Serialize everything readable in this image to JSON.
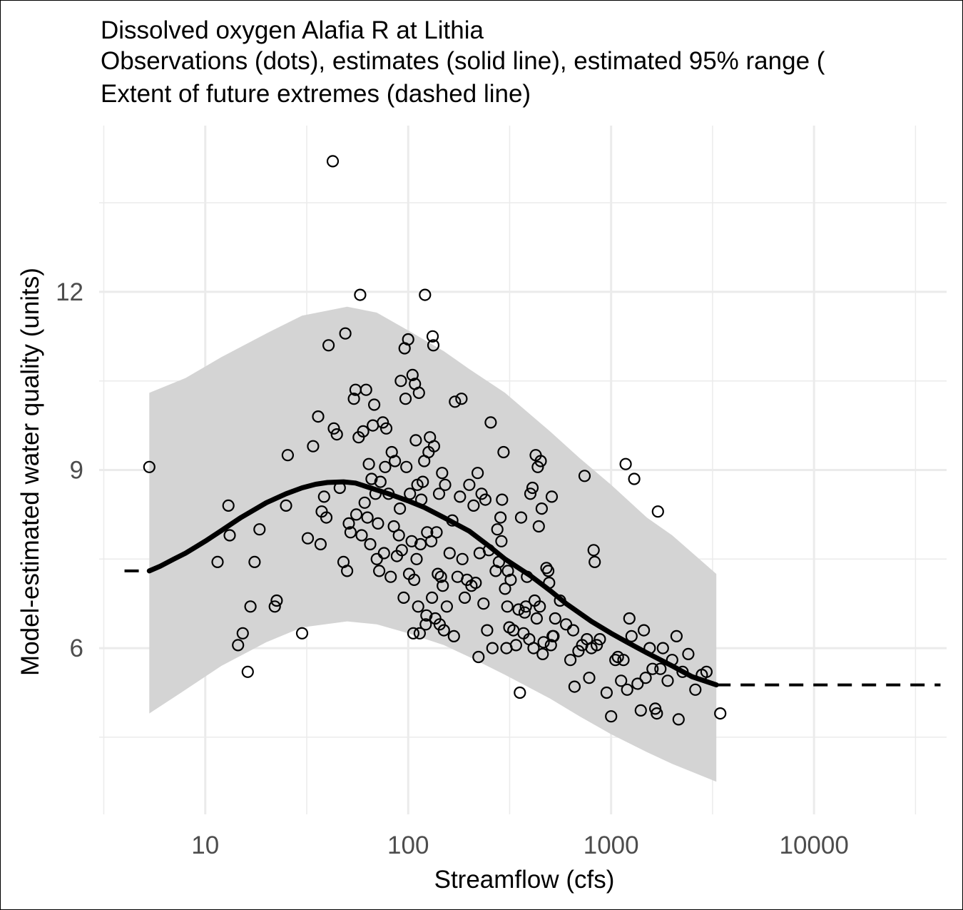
{
  "chart_data": {
    "type": "scatter",
    "title": "Dissolved oxygen Alafia R at Lithia",
    "subtitle_lines": [
      "Observations (dots), estimates (solid line), estimated 95% range (",
      "Extent of future extremes (dashed line)"
    ],
    "xlabel": "Streamflow (cfs)",
    "ylabel": "Model-estimated water quality (units)",
    "x_scale": "log10",
    "xlim": [
      3,
      45000
    ],
    "ylim": [
      3.2,
      14.8
    ],
    "x_ticks": [
      10,
      100,
      1000,
      10000
    ],
    "x_tick_labels": [
      "10",
      "100",
      "1000",
      "10000"
    ],
    "y_ticks": [
      6,
      9,
      12
    ],
    "y_tick_labels": [
      "6",
      "9",
      "12"
    ],
    "grid": true,
    "colors": {
      "band": "#d4d4d4",
      "line": "#000000",
      "grid": "#ebebeb",
      "text": "#4d4d4d"
    },
    "estimate_line": {
      "x": [
        5.3,
        6,
        7,
        8,
        10,
        12,
        15,
        20,
        25,
        30,
        35,
        40,
        48,
        55,
        65,
        80,
        100,
        120,
        150,
        200,
        250,
        300,
        400,
        500,
        600,
        800,
        1000,
        1200,
        1500,
        2000,
        2500,
        3300
      ],
      "y": [
        7.3,
        7.38,
        7.5,
        7.6,
        7.8,
        7.98,
        8.2,
        8.45,
        8.6,
        8.7,
        8.76,
        8.79,
        8.8,
        8.78,
        8.7,
        8.6,
        8.48,
        8.37,
        8.2,
        7.97,
        7.72,
        7.5,
        7.22,
        6.97,
        6.75,
        6.45,
        6.25,
        6.1,
        5.92,
        5.7,
        5.52,
        5.38
      ]
    },
    "band": {
      "x": [
        5.3,
        8,
        12,
        20,
        30,
        50,
        70,
        100,
        150,
        200,
        300,
        500,
        700,
        1000,
        1500,
        2000,
        3300
      ],
      "lower": [
        4.9,
        5.3,
        5.7,
        6.1,
        6.35,
        6.45,
        6.4,
        6.25,
        6.05,
        5.85,
        5.55,
        5.15,
        4.85,
        4.55,
        4.25,
        4.05,
        3.75
      ],
      "upper": [
        10.3,
        10.55,
        10.9,
        11.3,
        11.6,
        11.75,
        11.65,
        11.35,
        11.0,
        10.7,
        10.3,
        9.65,
        9.2,
        8.75,
        8.2,
        7.9,
        7.25
      ]
    },
    "future_extremes": {
      "low": {
        "x": [
          4,
          5
        ],
        "y": [
          7.3,
          7.3
        ]
      },
      "high": {
        "x": [
          3300,
          42000
        ],
        "y": [
          5.38,
          5.38
        ]
      }
    },
    "observations": [
      [
        5.3,
        9.05
      ],
      [
        11.5,
        7.45
      ],
      [
        13.0,
        8.4
      ],
      [
        13.2,
        7.9
      ],
      [
        14.5,
        6.05
      ],
      [
        15.3,
        6.25
      ],
      [
        16.2,
        5.6
      ],
      [
        16.7,
        6.7
      ],
      [
        17.5,
        7.45
      ],
      [
        18.5,
        8.0
      ],
      [
        22.0,
        6.7
      ],
      [
        22.5,
        6.8
      ],
      [
        25.0,
        8.4
      ],
      [
        25.5,
        9.25
      ],
      [
        30.0,
        6.25
      ],
      [
        32.0,
        7.85
      ],
      [
        34.0,
        9.4
      ],
      [
        36.0,
        9.9
      ],
      [
        37.0,
        7.75
      ],
      [
        37.5,
        8.3
      ],
      [
        38.5,
        8.55
      ],
      [
        39.5,
        8.2
      ],
      [
        40.5,
        11.1
      ],
      [
        42.5,
        14.2
      ],
      [
        43.0,
        9.7
      ],
      [
        44.5,
        9.6
      ],
      [
        46.0,
        8.7
      ],
      [
        48.0,
        7.45
      ],
      [
        49.0,
        11.3
      ],
      [
        50.0,
        7.3
      ],
      [
        51.0,
        8.1
      ],
      [
        52.0,
        7.95
      ],
      [
        54.0,
        10.2
      ],
      [
        55.0,
        10.35
      ],
      [
        55.5,
        8.25
      ],
      [
        57.0,
        9.55
      ],
      [
        58.0,
        11.95
      ],
      [
        59.0,
        7.9
      ],
      [
        60.0,
        9.65
      ],
      [
        61.0,
        8.45
      ],
      [
        62.0,
        10.35
      ],
      [
        63.0,
        8.2
      ],
      [
        64.0,
        9.1
      ],
      [
        65.0,
        7.75
      ],
      [
        66.0,
        8.85
      ],
      [
        67.0,
        9.75
      ],
      [
        68.0,
        10.1
      ],
      [
        69.0,
        8.6
      ],
      [
        70.0,
        7.5
      ],
      [
        71.0,
        8.1
      ],
      [
        72.0,
        7.3
      ],
      [
        73.0,
        8.8
      ],
      [
        75.0,
        9.8
      ],
      [
        76.0,
        7.6
      ],
      [
        77.0,
        9.05
      ],
      [
        78.0,
        9.7
      ],
      [
        80.0,
        8.6
      ],
      [
        82.0,
        7.2
      ],
      [
        83.0,
        9.3
      ],
      [
        85.0,
        8.05
      ],
      [
        86.0,
        9.15
      ],
      [
        88.0,
        7.55
      ],
      [
        90.0,
        7.9
      ],
      [
        91.0,
        8.35
      ],
      [
        92.0,
        10.5
      ],
      [
        93.0,
        7.65
      ],
      [
        95.0,
        6.85
      ],
      [
        96.0,
        11.05
      ],
      [
        97.0,
        10.2
      ],
      [
        98.0,
        9.05
      ],
      [
        100.0,
        11.2
      ],
      [
        101.0,
        7.25
      ],
      [
        102.0,
        8.6
      ],
      [
        104.0,
        7.8
      ],
      [
        105.0,
        10.6
      ],
      [
        106.0,
        6.25
      ],
      [
        107.0,
        7.15
      ],
      [
        108.0,
        10.45
      ],
      [
        109.0,
        9.5
      ],
      [
        110.0,
        7.5
      ],
      [
        111.0,
        8.75
      ],
      [
        112.0,
        6.7
      ],
      [
        113.0,
        10.3
      ],
      [
        114.0,
        6.25
      ],
      [
        115.0,
        7.75
      ],
      [
        116.0,
        8.5
      ],
      [
        118.0,
        8.8
      ],
      [
        120.0,
        9.15
      ],
      [
        121.0,
        11.95
      ],
      [
        122.0,
        6.4
      ],
      [
        123.0,
        6.55
      ],
      [
        124.0,
        7.95
      ],
      [
        126.0,
        9.3
      ],
      [
        128.0,
        9.55
      ],
      [
        130.0,
        7.8
      ],
      [
        131.0,
        6.85
      ],
      [
        132.0,
        11.25
      ],
      [
        133.0,
        11.1
      ],
      [
        134.0,
        9.4
      ],
      [
        136.0,
        6.5
      ],
      [
        138.0,
        7.95
      ],
      [
        140.0,
        7.25
      ],
      [
        142.0,
        8.6
      ],
      [
        143.0,
        6.4
      ],
      [
        145.0,
        7.2
      ],
      [
        147.0,
        8.95
      ],
      [
        148.0,
        7.05
      ],
      [
        150.0,
        6.3
      ],
      [
        152.0,
        8.75
      ],
      [
        155.0,
        6.7
      ],
      [
        160.0,
        7.6
      ],
      [
        165.0,
        8.15
      ],
      [
        168.0,
        6.2
      ],
      [
        170.0,
        10.15
      ],
      [
        175.0,
        7.2
      ],
      [
        180.0,
        8.55
      ],
      [
        183.0,
        10.2
      ],
      [
        185.0,
        7.5
      ],
      [
        190.0,
        6.85
      ],
      [
        195.0,
        7.15
      ],
      [
        200.0,
        8.75
      ],
      [
        205.0,
        7.05
      ],
      [
        210.0,
        8.4
      ],
      [
        215.0,
        7.1
      ],
      [
        220.0,
        8.95
      ],
      [
        222.0,
        5.85
      ],
      [
        225.0,
        7.6
      ],
      [
        230.0,
        8.6
      ],
      [
        235.0,
        6.75
      ],
      [
        240.0,
        8.5
      ],
      [
        245.0,
        6.3
      ],
      [
        250.0,
        7.65
      ],
      [
        255.0,
        9.8
      ],
      [
        260.0,
        6.0
      ],
      [
        270.0,
        7.3
      ],
      [
        275.0,
        8.0
      ],
      [
        280.0,
        7.45
      ],
      [
        285.0,
        8.2
      ],
      [
        288.0,
        7.8
      ],
      [
        290.0,
        8.5
      ],
      [
        295.0,
        9.3
      ],
      [
        300.0,
        7.0
      ],
      [
        305.0,
        6.0
      ],
      [
        308.0,
        6.7
      ],
      [
        310.0,
        7.3
      ],
      [
        315.0,
        6.35
      ],
      [
        320.0,
        7.15
      ],
      [
        330.0,
        6.3
      ],
      [
        340.0,
        6.05
      ],
      [
        350.0,
        6.65
      ],
      [
        355.0,
        5.25
      ],
      [
        360.0,
        8.2
      ],
      [
        370.0,
        6.25
      ],
      [
        375.0,
        6.6
      ],
      [
        380.0,
        6.7
      ],
      [
        385.0,
        7.2
      ],
      [
        395.0,
        6.15
      ],
      [
        400.0,
        8.6
      ],
      [
        410.0,
        8.7
      ],
      [
        415.0,
        6.0
      ],
      [
        420.0,
        6.8
      ],
      [
        425.0,
        9.25
      ],
      [
        430.0,
        6.5
      ],
      [
        435.0,
        9.05
      ],
      [
        440.0,
        8.05
      ],
      [
        445.0,
        6.7
      ],
      [
        450.0,
        9.15
      ],
      [
        455.0,
        8.35
      ],
      [
        460.0,
        5.9
      ],
      [
        465.0,
        6.1
      ],
      [
        480.0,
        7.35
      ],
      [
        490.0,
        7.3
      ],
      [
        495.0,
        7.1
      ],
      [
        505.0,
        6.05
      ],
      [
        510.0,
        8.55
      ],
      [
        515.0,
        6.2
      ],
      [
        520.0,
        6.2
      ],
      [
        530.0,
        6.5
      ],
      [
        560.0,
        6.8
      ],
      [
        600.0,
        6.4
      ],
      [
        630.0,
        5.8
      ],
      [
        650.0,
        6.3
      ],
      [
        660.0,
        5.35
      ],
      [
        690.0,
        5.95
      ],
      [
        720.0,
        6.05
      ],
      [
        740.0,
        8.9
      ],
      [
        760.0,
        6.15
      ],
      [
        780.0,
        5.5
      ],
      [
        800.0,
        6.0
      ],
      [
        820.0,
        7.65
      ],
      [
        830.0,
        7.45
      ],
      [
        850.0,
        6.05
      ],
      [
        880.0,
        6.15
      ],
      [
        950.0,
        5.25
      ],
      [
        1000.0,
        4.85
      ],
      [
        1050.0,
        5.8
      ],
      [
        1080.0,
        5.85
      ],
      [
        1120.0,
        5.45
      ],
      [
        1150.0,
        5.8
      ],
      [
        1180.0,
        9.1
      ],
      [
        1200.0,
        5.3
      ],
      [
        1230.0,
        6.5
      ],
      [
        1260.0,
        6.2
      ],
      [
        1300.0,
        8.85
      ],
      [
        1350.0,
        5.4
      ],
      [
        1400.0,
        4.95
      ],
      [
        1450.0,
        6.3
      ],
      [
        1480.0,
        5.5
      ],
      [
        1550.0,
        6.0
      ],
      [
        1600.0,
        5.65
      ],
      [
        1650.0,
        4.98
      ],
      [
        1680.0,
        4.9
      ],
      [
        1700.0,
        8.3
      ],
      [
        1750.0,
        5.65
      ],
      [
        1800.0,
        6.0
      ],
      [
        1900.0,
        5.45
      ],
      [
        2000.0,
        5.8
      ],
      [
        2100.0,
        6.2
      ],
      [
        2150.0,
        4.8
      ],
      [
        2250.0,
        5.6
      ],
      [
        2400.0,
        5.9
      ],
      [
        2600.0,
        5.3
      ],
      [
        2800.0,
        5.55
      ],
      [
        2950.0,
        5.6
      ],
      [
        3450.0,
        4.9
      ]
    ]
  }
}
